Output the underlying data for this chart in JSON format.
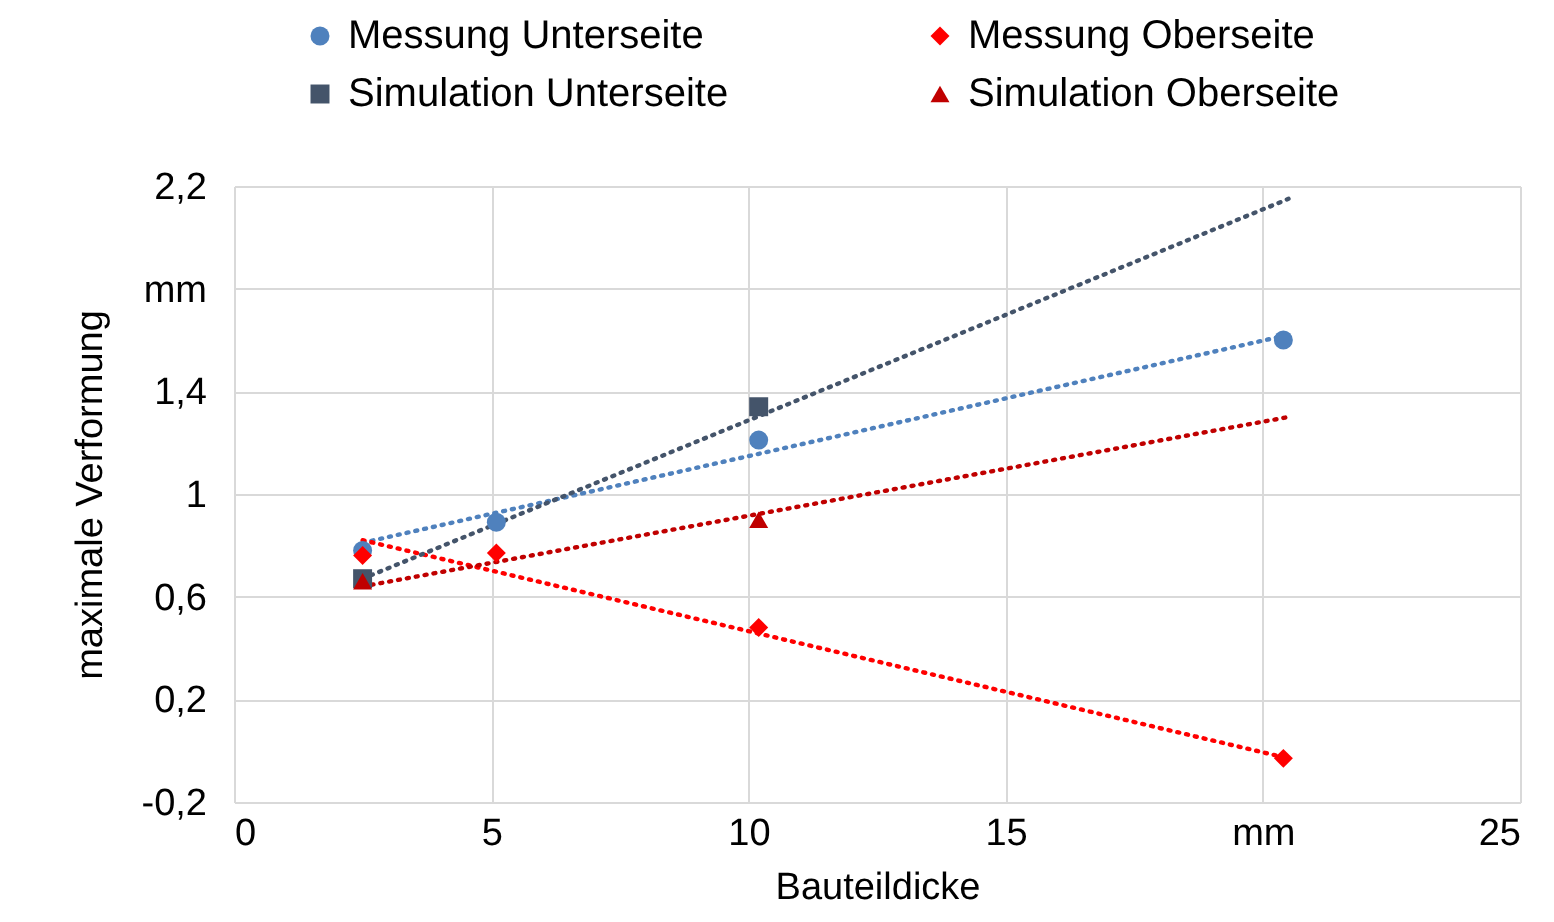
{
  "chart_data": {
    "type": "scatter",
    "xlabel": "Bauteildicke",
    "ylabel": "maximale Verformung",
    "xlim": [
      0,
      25
    ],
    "xticks": [
      0,
      5,
      10,
      15,
      {
        "value": 20,
        "label": "mm"
      },
      25
    ],
    "ylim": [
      -0.2,
      2.2
    ],
    "yticks": [
      {
        "value": -0.2,
        "label": "-0,2"
      },
      {
        "value": 0.2,
        "label": "0,2"
      },
      {
        "value": 0.6,
        "label": "0,6"
      },
      1,
      {
        "value": 1.4,
        "label": "1,4"
      },
      {
        "value": 1.8,
        "label": "mm"
      },
      {
        "value": 2.2,
        "label": "2,2"
      }
    ],
    "grid": true,
    "legend": "top",
    "series": [
      {
        "name": "Messung Unterseite",
        "color": "#4f81bd",
        "marker": "circle",
        "x": [
          2.5,
          5.1,
          10.2,
          20.4
        ],
        "values": [
          0.78,
          0.89,
          1.21,
          1.6
        ]
      },
      {
        "name": "Messung Oberseite",
        "color": "#ff0000",
        "marker": "diamond",
        "x": [
          2.5,
          5.1,
          10.2,
          20.4
        ],
        "values": [
          0.76,
          0.77,
          0.48,
          -0.03
        ]
      },
      {
        "name": "Simulation Unterseite",
        "color": "#44546a",
        "marker": "square",
        "x": [
          2.5,
          10.2
        ],
        "values": [
          0.67,
          1.34
        ]
      },
      {
        "name": "Simulation Oberseite",
        "color": "#c00000",
        "marker": "triangle",
        "x": [
          2.5,
          10.2
        ],
        "values": [
          0.66,
          0.9
        ]
      },
      {
        "type": "line",
        "color": "#4f81bd",
        "line_style": "dotted",
        "marker": "none",
        "x": [
          2.5,
          20.5
        ],
        "values": [
          0.81,
          1.62
        ]
      },
      {
        "type": "line",
        "color": "#ff0000",
        "line_style": "dotted",
        "marker": "none",
        "x": [
          2.5,
          20.5
        ],
        "values": [
          0.82,
          -0.03
        ]
      },
      {
        "type": "line",
        "color": "#44546a",
        "line_style": "dotted",
        "marker": "none",
        "x": [
          2.5,
          20.5
        ],
        "values": [
          0.67,
          2.15
        ]
      },
      {
        "type": "line",
        "color": "#c00000",
        "line_style": "dotted",
        "marker": "none",
        "x": [
          2.5,
          20.5
        ],
        "values": [
          0.64,
          1.3
        ]
      }
    ]
  }
}
